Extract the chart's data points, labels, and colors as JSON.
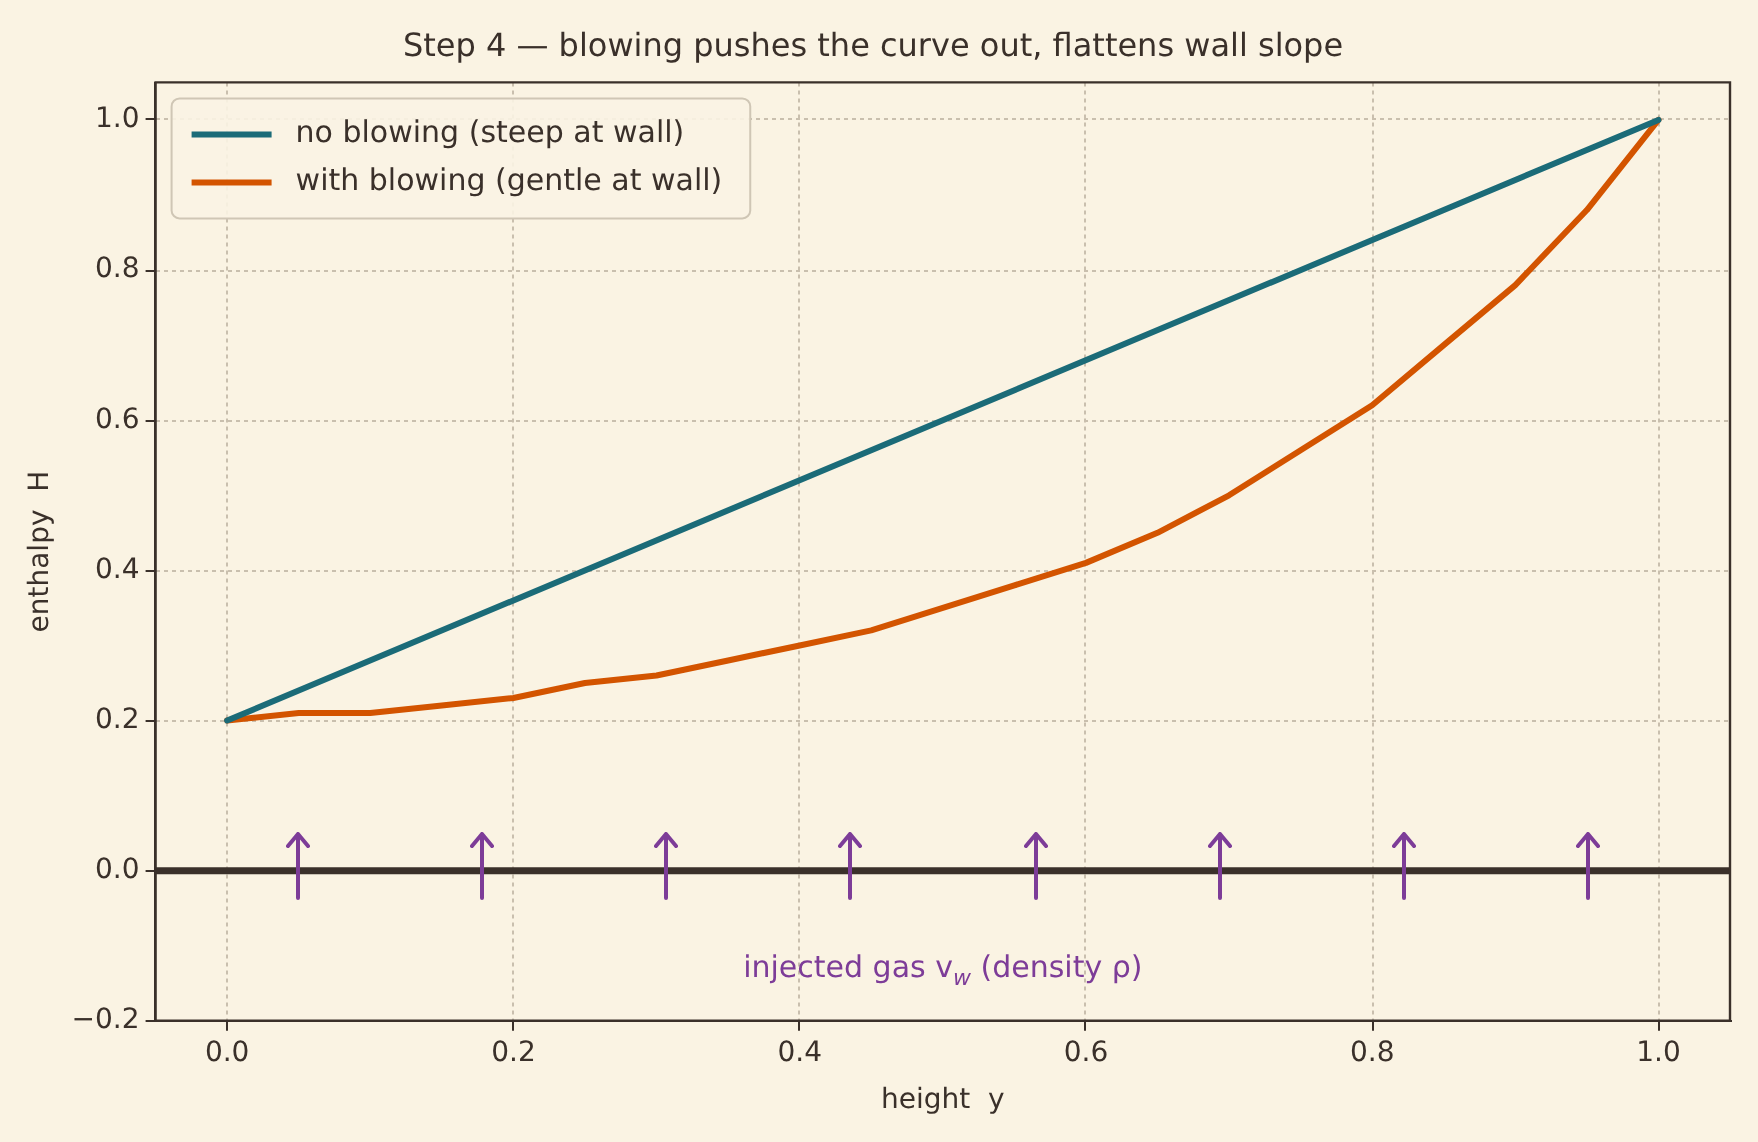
{
  "chart_data": {
    "type": "line",
    "title": "Step 4 — blowing pushes the curve out, flattens wall slope",
    "xlabel": "height  y",
    "ylabel": "enthalpy  H",
    "x": [
      0,
      0.05,
      0.1,
      0.15,
      0.2,
      0.25,
      0.3,
      0.35,
      0.4,
      0.45,
      0.5,
      0.55,
      0.6,
      0.65,
      0.7,
      0.75,
      0.8,
      0.85,
      0.9,
      0.95,
      1.0
    ],
    "series": [
      {
        "name": "no blowing (steep at wall)",
        "color": "#1b6b78",
        "x": [
          0,
          1.0
        ],
        "values": [
          0.2,
          1.0
        ]
      },
      {
        "name": "with blowing (gentle at wall)",
        "color": "#d35400",
        "values": [
          0.2,
          0.21,
          0.21,
          0.22,
          0.23,
          0.25,
          0.26,
          0.28,
          0.3,
          0.32,
          0.35,
          0.38,
          0.41,
          0.45,
          0.5,
          0.56,
          0.62,
          0.7,
          0.78,
          0.88,
          1.0
        ]
      }
    ],
    "xlim": [
      -0.05,
      1.05
    ],
    "xticks": [
      {
        "value": 0,
        "label": "0.0"
      },
      0.2,
      0.4,
      0.6,
      0.8,
      {
        "value": 1,
        "label": "1.0"
      }
    ],
    "ylim": [
      -0.2,
      1.05
    ],
    "yticks": [
      {
        "value": -0.2,
        "label": "−0.2"
      },
      {
        "value": 0,
        "label": "0.0"
      },
      0.2,
      0.4,
      0.6,
      0.8,
      {
        "value": 1,
        "label": "1.0"
      }
    ],
    "ref_lines": [
      {
        "axis": "y",
        "value": 0,
        "color": "#3a302a"
      }
    ],
    "annotations": [
      "injected gas v$_{w}$ (density ρ)"
    ],
    "grid": true,
    "legend": "top left",
    "marker": "none",
    "line_style": "solid"
  }
}
